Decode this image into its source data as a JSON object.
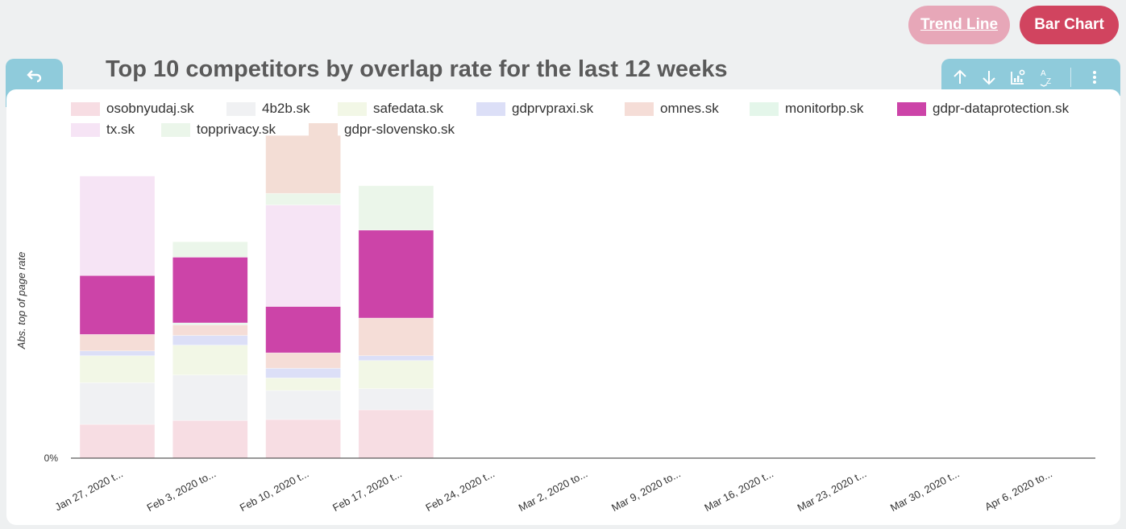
{
  "buttons": {
    "trend_line": "Trend Line",
    "bar_chart": "Bar Chart"
  },
  "icons": {
    "back": "undo-arrow-icon",
    "toolbar": [
      "arrow-up-icon",
      "arrow-down-icon",
      "chart-settings-icon",
      "sort-az-icon",
      "more-vert-icon"
    ]
  },
  "colors": {
    "bar_chart_button": "#d1445f",
    "trend_line_button": "#e7a7b8",
    "toolbar": "#8fcbdb"
  },
  "chart_data": {
    "type": "bar",
    "stacked": true,
    "title": "Top 10 competitors by overlap rate for the last 12 weeks",
    "xlabel": "",
    "ylabel": "Abs. top of page rate",
    "y_tick_labels": [
      "0%"
    ],
    "legend_position": "top",
    "categories": [
      "Jan 27, 2020 t...",
      "Feb 3, 2020 to...",
      "Feb 10, 2020 t...",
      "Feb 17, 2020 t...",
      "Feb 24, 2020 t...",
      "Mar 2, 2020 to...",
      "Mar 9, 2020 to...",
      "Mar 16, 2020 t...",
      "Mar 23, 2020 t...",
      "Mar 30, 2020 t...",
      "Apr 6, 2020 to..."
    ],
    "series": [
      {
        "name": "osobnyudaj.sk",
        "color": "#f7dde3",
        "values": [
          0.035,
          0.039,
          0.04,
          0.05,
          0,
          0,
          0,
          0,
          0,
          0,
          0
        ]
      },
      {
        "name": "4b2b.sk",
        "color": "#f0f1f3",
        "values": [
          0.043,
          0.047,
          0.03,
          0.022,
          0,
          0,
          0,
          0,
          0,
          0,
          0
        ]
      },
      {
        "name": "safedata.sk",
        "color": "#f2f7e6",
        "values": [
          0.028,
          0.031,
          0.013,
          0.029,
          0,
          0,
          0,
          0,
          0,
          0,
          0
        ]
      },
      {
        "name": "gdprvpraxi.sk",
        "color": "#dcdff7",
        "values": [
          0.005,
          0.01,
          0.01,
          0.005,
          0,
          0,
          0,
          0,
          0,
          0,
          0
        ]
      },
      {
        "name": "omnes.sk",
        "color": "#f5ddd7",
        "values": [
          0.017,
          0.011,
          0.016,
          0.039,
          0,
          0,
          0,
          0,
          0,
          0,
          0
        ]
      },
      {
        "name": "monitorbp.sk",
        "color": "#e4f6ea",
        "values": [
          0,
          0.002,
          0,
          0,
          0,
          0,
          0,
          0,
          0,
          0,
          0
        ]
      },
      {
        "name": "gdpr-dataprotection.sk",
        "color": "#cc44a8",
        "values": [
          0.061,
          0.068,
          0.048,
          0.091,
          0,
          0,
          0,
          0,
          0,
          0,
          0
        ]
      },
      {
        "name": "tx.sk",
        "color": "#f6e4f5",
        "values": [
          0.103,
          0,
          0.105,
          0,
          0,
          0,
          0,
          0,
          0,
          0,
          0
        ]
      },
      {
        "name": "topprivacy.sk",
        "color": "#ebf6ea",
        "values": [
          0,
          0.016,
          0.012,
          0.046,
          0,
          0,
          0,
          0,
          0,
          0,
          0
        ]
      },
      {
        "name": "gdpr-slovensko.sk",
        "color": "#f3ddd5",
        "values": [
          0,
          0,
          0.06,
          0,
          0,
          0,
          0,
          0,
          0,
          0,
          0
        ]
      }
    ]
  }
}
